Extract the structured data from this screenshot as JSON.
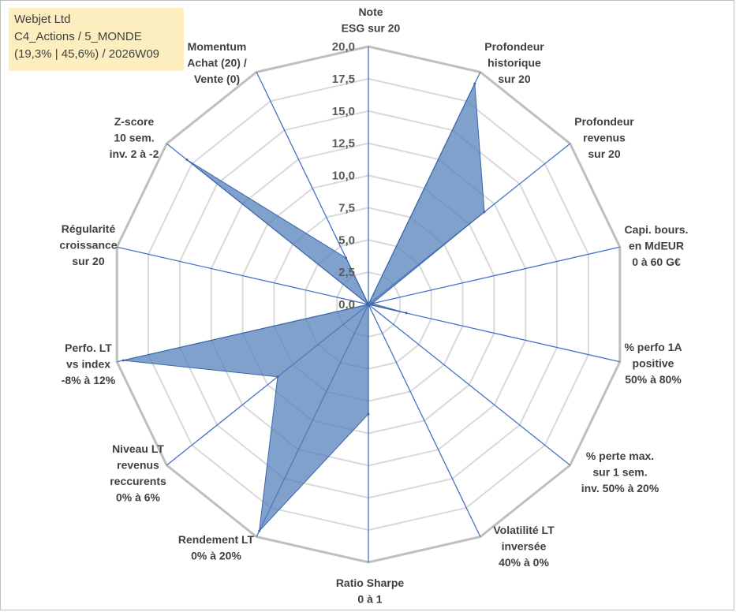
{
  "header": {
    "line1": "Webjet Ltd",
    "line2": "C4_Actions / 5_MONDE",
    "line3": "(19,3% | 45,6%) / 2026W09"
  },
  "chart_data": {
    "type": "radar",
    "r_min": 0,
    "r_max": 20,
    "tick_step": 2.5,
    "tick_labels": [
      "0,0",
      "2,5",
      "5,0",
      "7,5",
      "10,0",
      "12,5",
      "15,0",
      "17,5",
      "20,0"
    ],
    "fill_color": "#4f7db8",
    "axes": [
      {
        "label": [
          "Note",
          "ESG sur 20"
        ],
        "value": 0
      },
      {
        "label": [
          "Profondeur",
          "historique",
          "sur 20"
        ],
        "value": 19
      },
      {
        "label": [
          "Profondeur",
          "revenus",
          "sur 20"
        ],
        "value": 11.5
      },
      {
        "label": [
          "Capi. bours.",
          "en MdEUR",
          "0 à 60 G€"
        ],
        "value": 0.3
      },
      {
        "label": [
          "% perfo 1A",
          "positive",
          "50% à 80%"
        ],
        "value": 3
      },
      {
        "label": [
          "% perte max.",
          "sur 1 sem.",
          "inv. 50% à 20%"
        ],
        "value": 0
      },
      {
        "label": [
          "Volatilité LT",
          "inversée",
          "40% à 0%"
        ],
        "value": 0
      },
      {
        "label": [
          "Ratio Sharpe",
          "0 à 1"
        ],
        "value": 8.5
      },
      {
        "label": [
          "Rendement LT",
          "0% à 20%"
        ],
        "value": 19.5
      },
      {
        "label": [
          "Niveau LT",
          "revenus",
          "reccurents",
          "0% à 6%"
        ],
        "value": 9
      },
      {
        "label": [
          "Perfo. LT",
          "vs index",
          "-8% à 12%"
        ],
        "value": 19.5
      },
      {
        "label": [
          "Régularité",
          "croissance",
          "sur 20"
        ],
        "value": 0
      },
      {
        "label": [
          "Z-score",
          "10 sem.",
          "inv. 2 à -2"
        ],
        "value": 18
      },
      {
        "label": [
          "Momentum",
          "Achat (20) /",
          "Vente (0)"
        ],
        "value": 4
      }
    ]
  }
}
